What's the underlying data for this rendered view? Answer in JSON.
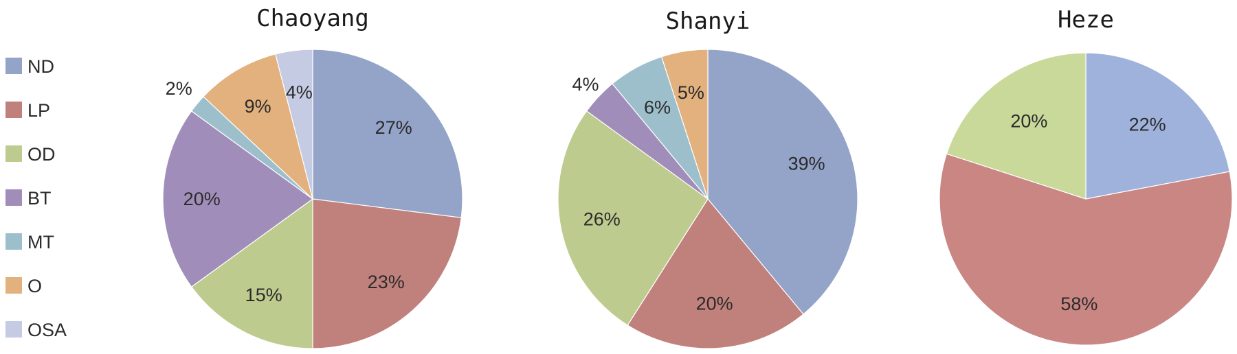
{
  "chart_data": [
    {
      "type": "pie",
      "title": "Chaoyang",
      "slices": [
        {
          "category": "ND",
          "value": 27,
          "label": "27%"
        },
        {
          "category": "LP",
          "value": 23,
          "label": "23%"
        },
        {
          "category": "OD",
          "value": 15,
          "label": "15%"
        },
        {
          "category": "BT",
          "value": 20,
          "label": "20%"
        },
        {
          "category": "MT",
          "value": 2,
          "label": "2%"
        },
        {
          "category": "O",
          "value": 9,
          "label": "9%"
        },
        {
          "category": "OSA",
          "value": 4,
          "label": "4%"
        }
      ]
    },
    {
      "type": "pie",
      "title": "Shanyi",
      "slices": [
        {
          "category": "ND",
          "value": 39,
          "label": "39%"
        },
        {
          "category": "LP",
          "value": 20,
          "label": "20%"
        },
        {
          "category": "OD",
          "value": 26,
          "label": "26%"
        },
        {
          "category": "BT",
          "value": 4,
          "label": "4%"
        },
        {
          "category": "MT",
          "value": 6,
          "label": "6%"
        },
        {
          "category": "O",
          "value": 5,
          "label": "5%"
        }
      ]
    },
    {
      "type": "pie",
      "title": "Heze",
      "slices": [
        {
          "category": "ND",
          "value": 22,
          "label": "22%"
        },
        {
          "category": "LP",
          "value": 58,
          "label": "58%"
        },
        {
          "category": "OD",
          "value": 20,
          "label": "20%"
        }
      ]
    }
  ],
  "legend": {
    "placement": "left",
    "entries": [
      {
        "name": "ND",
        "color": "#94A3C8"
      },
      {
        "name": "LP",
        "color": "#C0807C"
      },
      {
        "name": "OD",
        "color": "#BDCB8E"
      },
      {
        "name": "BT",
        "color": "#A18DBA"
      },
      {
        "name": "MT",
        "color": "#9DBFCC"
      },
      {
        "name": "O",
        "color": "#E2B17D"
      },
      {
        "name": "OSA",
        "color": "#C6CBE4"
      }
    ]
  }
}
